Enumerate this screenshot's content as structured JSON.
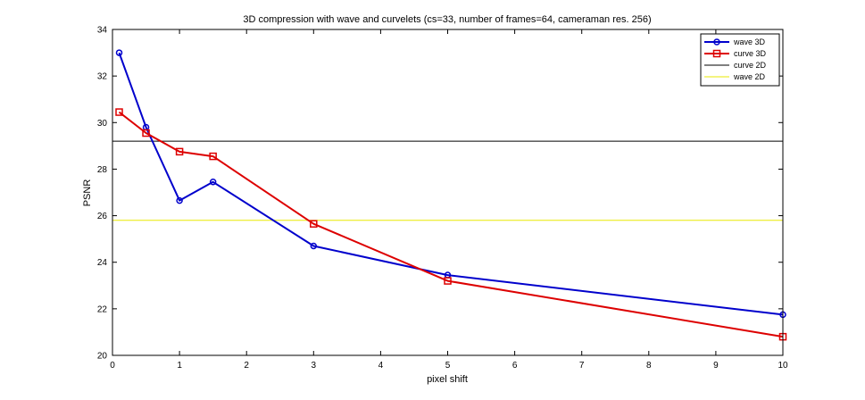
{
  "chart_data": {
    "type": "line",
    "title": "3D compression with wave and curvelets (cs=33, number of frames=64,  cameraman res. 256)",
    "xlabel": "pixel shift",
    "ylabel": "PSNR",
    "xlim": [
      0,
      10
    ],
    "ylim": [
      20,
      34
    ],
    "xticks": [
      0,
      1,
      2,
      3,
      4,
      5,
      6,
      7,
      8,
      9,
      10
    ],
    "yticks": [
      20,
      22,
      24,
      26,
      28,
      30,
      32,
      34
    ],
    "grid": false,
    "legend_position": "top-right",
    "series": [
      {
        "name": "wave 3D",
        "color": "#0000cc",
        "marker": "circle",
        "x": [
          0.1,
          0.5,
          1,
          1.5,
          3,
          5,
          10
        ],
        "y": [
          33.0,
          29.8,
          26.65,
          27.45,
          24.7,
          23.45,
          21.75
        ]
      },
      {
        "name": "curve 3D",
        "color": "#dd0000",
        "marker": "square",
        "x": [
          0.1,
          0.5,
          1,
          1.5,
          3,
          5,
          10
        ],
        "y": [
          30.45,
          29.55,
          28.75,
          28.55,
          25.65,
          23.2,
          20.8
        ]
      },
      {
        "name": "curve 2D",
        "color": "#000000",
        "marker": "none",
        "constant": 29.2
      },
      {
        "name": "wave 2D",
        "color": "#e8e800",
        "marker": "none",
        "constant": 25.8
      }
    ]
  }
}
